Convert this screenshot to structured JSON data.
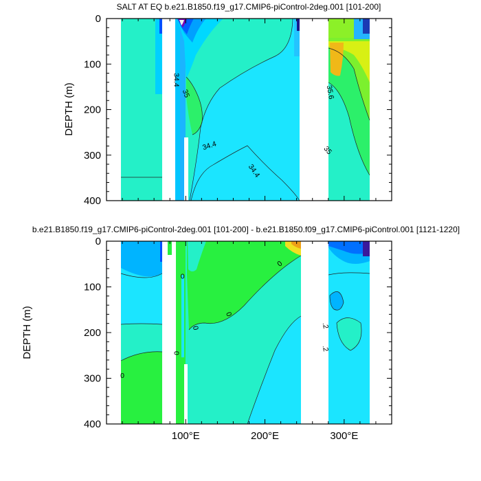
{
  "chart_data": [
    {
      "type": "contour",
      "title": "SALT AT EQ b.e21.B1850.f19_g17.CMIP6-piControl-2deg.001 [101-200]",
      "ylabel": "DEPTH (m)",
      "xlabel": "",
      "xlim": [
        0,
        360
      ],
      "ylim": [
        0,
        400
      ],
      "y_inverted": true,
      "yticks": [
        {
          "value": 0,
          "label": "0"
        },
        {
          "value": 100,
          "label": "100"
        },
        {
          "value": 200,
          "label": "200"
        },
        {
          "value": 300,
          "label": "300"
        },
        {
          "value": 400,
          "label": "400"
        }
      ],
      "xticks": [],
      "contour_labels": [
        {
          "text": "34.4",
          "lon": 88,
          "depth": 135,
          "rotate": 90
        },
        {
          "text": "35",
          "lon": 100,
          "depth": 165,
          "rotate": 70
        },
        {
          "text": "34.4",
          "lon": 130,
          "depth": 280,
          "rotate": -18
        },
        {
          "text": "34.4",
          "lon": 186,
          "depth": 335,
          "rotate": 55
        },
        {
          "text": "35.6",
          "lon": 282,
          "depth": 162,
          "rotate": 80
        },
        {
          "text": "35",
          "lon": 279,
          "depth": 290,
          "rotate": 50
        }
      ]
    },
    {
      "type": "contour",
      "title": "b.e21.B1850.f19_g17.CMIP6-piControl-2deg.001 [101-200] - b.e21.B1850.f09_g17.CMIP6-piControl.001 [1121-1220]",
      "ylabel": "DEPTH (m)",
      "xlabel": "",
      "xlim": [
        0,
        360
      ],
      "ylim": [
        0,
        400
      ],
      "y_inverted": true,
      "yticks": [
        {
          "value": 0,
          "label": "0"
        },
        {
          "value": 100,
          "label": "100"
        },
        {
          "value": 200,
          "label": "200"
        },
        {
          "value": 300,
          "label": "300"
        },
        {
          "value": 400,
          "label": "400"
        }
      ],
      "xticks": [
        {
          "value": 100,
          "label": "100°E"
        },
        {
          "value": 200,
          "label": "200°E"
        },
        {
          "value": 300,
          "label": "300°E"
        }
      ],
      "contour_labels": [
        {
          "text": "0",
          "lon": 20,
          "depth": 295,
          "rotate": 0
        },
        {
          "text": "0",
          "lon": 96,
          "depth": 78,
          "rotate": 0
        },
        {
          "text": "0",
          "lon": 112,
          "depth": 190,
          "rotate": 80
        },
        {
          "text": "0",
          "lon": 154,
          "depth": 160,
          "rotate": 70
        },
        {
          "text": "0",
          "lon": 219,
          "depth": 50,
          "rotate": -40
        },
        {
          "text": "0",
          "lon": 88,
          "depth": 245,
          "rotate": 90
        },
        {
          "text": ".2",
          "lon": 276,
          "depth": 185,
          "rotate": 80
        },
        {
          "text": ".2",
          "lon": 276,
          "depth": 235,
          "rotate": 80
        }
      ]
    }
  ]
}
